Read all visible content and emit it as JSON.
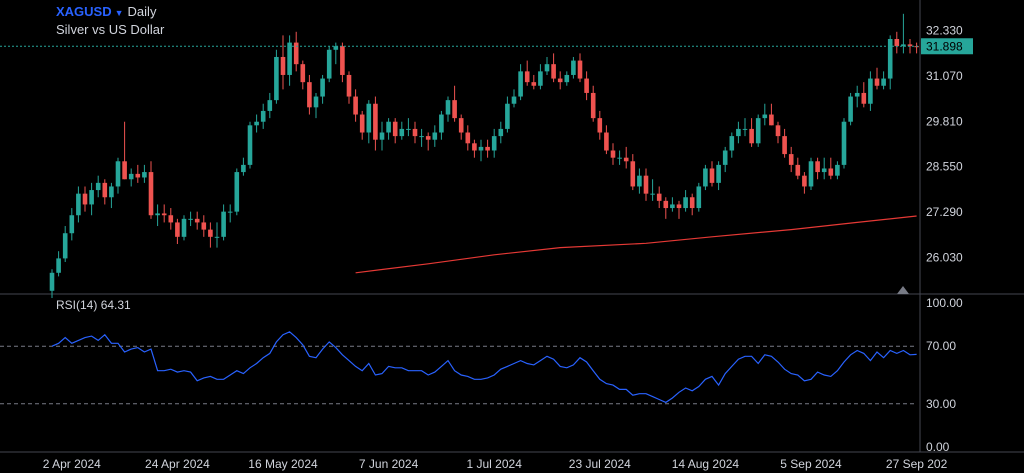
{
  "header": {
    "symbol": "XAGUSD",
    "interval": "Daily",
    "description": "Silver vs US Dollar"
  },
  "price_panel": {
    "last_price_label": "31.898",
    "y_tick_labels": [
      "32.330",
      "31.070",
      "29.810",
      "28.550",
      "27.290",
      "26.030"
    ]
  },
  "rsi_panel": {
    "label": "RSI(14)",
    "value": "64.31",
    "y_tick_labels": [
      "100.00",
      "70.00",
      "30.00",
      "0.00"
    ]
  },
  "x_axis": {
    "tick_labels": [
      "2 Apr 2024",
      "24 Apr 2024",
      "16 May 2024",
      "7 Jun 2024",
      "1 Jul 2024",
      "23 Jul 2024",
      "14 Aug 2024",
      "5 Sep 2024",
      "27 Sep 202"
    ]
  },
  "colors": {
    "up": "#26a69a",
    "down": "#ef5350",
    "moving_average": "#e53935",
    "rsi_line": "#2962ff",
    "last_price_badge": "#26a69a"
  },
  "chart_data": [
    {
      "type": "candlestick",
      "title": "XAGUSD Daily",
      "ylim": [
        25.5,
        33.0
      ],
      "x": [
        "2024-03-27",
        "2024-03-28",
        "2024-04-01",
        "2024-04-02",
        "2024-04-03",
        "2024-04-04",
        "2024-04-05",
        "2024-04-08",
        "2024-04-09",
        "2024-04-10",
        "2024-04-11",
        "2024-04-12",
        "2024-04-15",
        "2024-04-16",
        "2024-04-17",
        "2024-04-18",
        "2024-04-19",
        "2024-04-22",
        "2024-04-23",
        "2024-04-24",
        "2024-04-25",
        "2024-04-26",
        "2024-04-29",
        "2024-04-30",
        "2024-05-01",
        "2024-05-02",
        "2024-05-03",
        "2024-05-06",
        "2024-05-07",
        "2024-05-08",
        "2024-05-09",
        "2024-05-10",
        "2024-05-13",
        "2024-05-14",
        "2024-05-15",
        "2024-05-16",
        "2024-05-17",
        "2024-05-20",
        "2024-05-21",
        "2024-05-22",
        "2024-05-23",
        "2024-05-24",
        "2024-05-27",
        "2024-05-28",
        "2024-05-29",
        "2024-05-30",
        "2024-05-31",
        "2024-06-03",
        "2024-06-04",
        "2024-06-05",
        "2024-06-06",
        "2024-06-07",
        "2024-06-10",
        "2024-06-11",
        "2024-06-12",
        "2024-06-13",
        "2024-06-14",
        "2024-06-17",
        "2024-06-18",
        "2024-06-19",
        "2024-06-20",
        "2024-06-21",
        "2024-06-24",
        "2024-06-25",
        "2024-06-26",
        "2024-06-27",
        "2024-06-28",
        "2024-07-01",
        "2024-07-02",
        "2024-07-03",
        "2024-07-04",
        "2024-07-05",
        "2024-07-08",
        "2024-07-09",
        "2024-07-10",
        "2024-07-11",
        "2024-07-12",
        "2024-07-15",
        "2024-07-16",
        "2024-07-17",
        "2024-07-18",
        "2024-07-19",
        "2024-07-22",
        "2024-07-23",
        "2024-07-24",
        "2024-07-25",
        "2024-07-26",
        "2024-07-29",
        "2024-07-30",
        "2024-07-31",
        "2024-08-01",
        "2024-08-02",
        "2024-08-05",
        "2024-08-06",
        "2024-08-07",
        "2024-08-08",
        "2024-08-09",
        "2024-08-12",
        "2024-08-13",
        "2024-08-14",
        "2024-08-15",
        "2024-08-16",
        "2024-08-19",
        "2024-08-20",
        "2024-08-21",
        "2024-08-22",
        "2024-08-23",
        "2024-08-26",
        "2024-08-27",
        "2024-08-28",
        "2024-08-29",
        "2024-08-30",
        "2024-09-02",
        "2024-09-03",
        "2024-09-04",
        "2024-09-05",
        "2024-09-06",
        "2024-09-09",
        "2024-09-10",
        "2024-09-11",
        "2024-09-12",
        "2024-09-13",
        "2024-09-16",
        "2024-09-17",
        "2024-09-18",
        "2024-09-19",
        "2024-09-20",
        "2024-09-23",
        "2024-09-24",
        "2024-09-25",
        "2024-09-26",
        "2024-09-27"
      ],
      "open": [
        25.1,
        25.6,
        26.0,
        26.7,
        27.2,
        27.8,
        27.5,
        27.9,
        28.1,
        27.7,
        28.0,
        28.7,
        28.2,
        28.35,
        28.25,
        28.4,
        27.2,
        27.25,
        27.2,
        27.0,
        26.6,
        27.1,
        27.1,
        27.0,
        26.8,
        26.6,
        26.6,
        27.3,
        27.3,
        28.4,
        28.6,
        29.7,
        29.8,
        30.1,
        30.4,
        31.6,
        31.1,
        32.0,
        31.4,
        30.9,
        30.2,
        30.5,
        31.0,
        31.8,
        31.9,
        31.1,
        30.5,
        30.0,
        29.5,
        30.3,
        29.3,
        29.5,
        29.8,
        29.4,
        29.6,
        29.6,
        29.4,
        29.4,
        29.3,
        29.5,
        30.0,
        30.4,
        29.9,
        29.5,
        29.2,
        29.0,
        29.1,
        29.0,
        29.4,
        29.6,
        30.3,
        30.5,
        31.2,
        30.9,
        30.8,
        31.2,
        31.4,
        31.0,
        30.9,
        31.1,
        31.5,
        31.0,
        30.6,
        29.9,
        29.5,
        29.0,
        28.8,
        28.8,
        28.7,
        28.0,
        28.3,
        27.8,
        27.8,
        27.6,
        27.4,
        27.5,
        27.4,
        27.7,
        27.4,
        28.0,
        28.5,
        28.1,
        28.6,
        29.0,
        29.4,
        29.6,
        29.6,
        29.2,
        29.9,
        30.0,
        29.7,
        29.4,
        28.9,
        28.6,
        28.3,
        28.0,
        28.7,
        28.4,
        28.5,
        28.3,
        28.6,
        29.8,
        30.5,
        30.6,
        30.3,
        31.0,
        30.8,
        31.0,
        32.1,
        31.9,
        31.95,
        31.9
      ],
      "high": [
        25.7,
        26.2,
        26.9,
        27.4,
        28.0,
        28.0,
        28.1,
        28.3,
        28.2,
        28.1,
        28.8,
        29.8,
        28.5,
        28.6,
        28.6,
        28.7,
        27.5,
        27.5,
        27.4,
        27.1,
        27.2,
        27.3,
        27.3,
        27.2,
        27.0,
        27.0,
        27.5,
        27.5,
        28.5,
        28.8,
        29.8,
        30.0,
        30.3,
        30.6,
        31.8,
        32.2,
        32.2,
        32.3,
        31.5,
        31.1,
        30.6,
        31.1,
        31.9,
        32.0,
        32.0,
        31.2,
        30.7,
        30.1,
        30.4,
        30.5,
        29.8,
        29.9,
        29.9,
        29.8,
        29.9,
        29.8,
        29.6,
        29.5,
        29.7,
        30.1,
        30.5,
        30.8,
        30.0,
        29.7,
        29.3,
        29.3,
        29.3,
        29.6,
        29.8,
        30.5,
        30.7,
        31.4,
        31.5,
        31.1,
        31.4,
        31.6,
        31.7,
        31.2,
        31.2,
        31.6,
        31.7,
        31.2,
        30.8,
        30.1,
        29.7,
        29.2,
        29.0,
        29.1,
        28.9,
        28.5,
        28.5,
        28.2,
        28.0,
        27.7,
        27.7,
        27.6,
        27.9,
        27.8,
        28.1,
        28.6,
        28.7,
        28.7,
        29.1,
        29.5,
        29.8,
        29.9,
        29.9,
        30.0,
        30.3,
        30.3,
        29.8,
        29.6,
        29.1,
        28.8,
        28.4,
        28.8,
        28.8,
        28.8,
        28.8,
        28.7,
        29.9,
        30.6,
        30.8,
        30.9,
        31.2,
        31.3,
        31.2,
        32.2,
        32.3,
        32.8,
        32.1,
        32.0
      ],
      "low": [
        24.9,
        25.5,
        25.9,
        26.5,
        27.0,
        27.3,
        27.2,
        27.7,
        27.5,
        27.4,
        27.8,
        28.2,
        28.0,
        28.1,
        28.1,
        27.1,
        26.9,
        27.0,
        26.8,
        26.4,
        26.5,
        26.9,
        26.8,
        26.6,
        26.3,
        26.3,
        26.5,
        27.0,
        27.2,
        28.3,
        28.5,
        29.5,
        29.6,
        29.9,
        30.3,
        30.7,
        30.8,
        31.2,
        30.7,
        30.0,
        29.9,
        30.3,
        30.9,
        31.4,
        30.9,
        30.3,
        29.8,
        29.3,
        29.2,
        29.0,
        29.0,
        29.3,
        29.2,
        29.3,
        29.4,
        29.2,
        29.1,
        29.0,
        29.1,
        29.3,
        29.8,
        29.8,
        29.3,
        29.0,
        28.8,
        28.7,
        28.8,
        28.8,
        29.2,
        29.5,
        30.2,
        30.4,
        30.8,
        30.7,
        30.7,
        31.1,
        30.9,
        30.7,
        30.8,
        31.0,
        30.9,
        30.4,
        29.8,
        29.3,
        28.9,
        28.6,
        28.6,
        28.5,
        27.9,
        27.8,
        27.6,
        27.6,
        27.4,
        27.1,
        27.3,
        27.1,
        27.3,
        27.2,
        27.3,
        27.9,
        28.0,
        27.9,
        28.4,
        28.8,
        29.2,
        29.4,
        29.1,
        29.1,
        29.7,
        29.7,
        29.2,
        28.8,
        28.4,
        28.2,
        27.8,
        27.9,
        28.2,
        28.2,
        28.2,
        28.2,
        28.5,
        29.7,
        30.2,
        30.2,
        30.1,
        30.7,
        30.7,
        30.7,
        31.7,
        31.7,
        31.7,
        31.7
      ],
      "close": [
        25.6,
        26.0,
        26.7,
        27.2,
        27.8,
        27.5,
        27.9,
        28.1,
        27.7,
        28.0,
        28.7,
        28.2,
        28.35,
        28.25,
        28.4,
        27.2,
        27.25,
        27.2,
        27.0,
        26.6,
        27.1,
        27.1,
        27.0,
        26.8,
        26.6,
        26.6,
        27.3,
        27.3,
        28.4,
        28.6,
        29.7,
        29.8,
        30.1,
        30.4,
        31.6,
        31.1,
        32.0,
        31.4,
        30.9,
        30.2,
        30.5,
        31.0,
        31.8,
        31.9,
        31.1,
        30.5,
        30.0,
        29.5,
        30.3,
        29.3,
        29.5,
        29.8,
        29.4,
        29.6,
        29.6,
        29.4,
        29.4,
        29.3,
        29.5,
        30.0,
        30.4,
        29.9,
        29.5,
        29.2,
        29.0,
        29.1,
        29.0,
        29.4,
        29.6,
        30.3,
        30.5,
        31.2,
        30.9,
        30.8,
        31.2,
        31.4,
        31.0,
        30.9,
        31.1,
        31.5,
        31.0,
        30.6,
        29.9,
        29.5,
        29.0,
        28.8,
        28.8,
        28.7,
        28.0,
        28.3,
        27.8,
        27.8,
        27.6,
        27.4,
        27.5,
        27.4,
        27.7,
        27.4,
        28.0,
        28.5,
        28.1,
        28.6,
        29.0,
        29.4,
        29.6,
        29.6,
        29.2,
        29.9,
        30.0,
        29.7,
        29.4,
        28.9,
        28.6,
        28.3,
        28.0,
        28.7,
        28.4,
        28.5,
        28.3,
        28.6,
        29.8,
        30.5,
        30.6,
        30.3,
        31.0,
        30.8,
        31.0,
        32.1,
        31.9,
        31.95,
        31.9,
        31.898
      ],
      "series": [
        {
          "name": "",
          "x": [
            "2024-05-31",
            "2024-06-17",
            "2024-07-01",
            "2024-07-15",
            "2024-08-01",
            "2024-08-15",
            "2024-09-02",
            "2024-09-16",
            "2024-09-27"
          ],
          "values": [
            25.6,
            25.85,
            26.1,
            26.3,
            26.42,
            26.6,
            26.8,
            27.0,
            27.18
          ]
        }
      ],
      "last_price": 31.898
    },
    {
      "type": "line",
      "title": "RSI(14) 64.31",
      "ylim": [
        0,
        100
      ],
      "reference_lines": [
        70,
        30
      ],
      "x": [
        "2024-03-27",
        "2024-03-28",
        "2024-04-01",
        "2024-04-02",
        "2024-04-03",
        "2024-04-04",
        "2024-04-05",
        "2024-04-08",
        "2024-04-09",
        "2024-04-10",
        "2024-04-11",
        "2024-04-12",
        "2024-04-15",
        "2024-04-16",
        "2024-04-17",
        "2024-04-18",
        "2024-04-19",
        "2024-04-22",
        "2024-04-23",
        "2024-04-24",
        "2024-04-25",
        "2024-04-26",
        "2024-04-29",
        "2024-04-30",
        "2024-05-01",
        "2024-05-02",
        "2024-05-03",
        "2024-05-06",
        "2024-05-07",
        "2024-05-08",
        "2024-05-09",
        "2024-05-10",
        "2024-05-13",
        "2024-05-14",
        "2024-05-15",
        "2024-05-16",
        "2024-05-17",
        "2024-05-20",
        "2024-05-21",
        "2024-05-22",
        "2024-05-23",
        "2024-05-24",
        "2024-05-27",
        "2024-05-28",
        "2024-05-29",
        "2024-05-30",
        "2024-05-31",
        "2024-06-03",
        "2024-06-04",
        "2024-06-05",
        "2024-06-06",
        "2024-06-07",
        "2024-06-10",
        "2024-06-11",
        "2024-06-12",
        "2024-06-13",
        "2024-06-14",
        "2024-06-17",
        "2024-06-18",
        "2024-06-19",
        "2024-06-20",
        "2024-06-21",
        "2024-06-24",
        "2024-06-25",
        "2024-06-26",
        "2024-06-27",
        "2024-06-28",
        "2024-07-01",
        "2024-07-02",
        "2024-07-03",
        "2024-07-04",
        "2024-07-05",
        "2024-07-08",
        "2024-07-09",
        "2024-07-10",
        "2024-07-11",
        "2024-07-12",
        "2024-07-15",
        "2024-07-16",
        "2024-07-17",
        "2024-07-18",
        "2024-07-19",
        "2024-07-22",
        "2024-07-23",
        "2024-07-24",
        "2024-07-25",
        "2024-07-26",
        "2024-07-29",
        "2024-07-30",
        "2024-07-31",
        "2024-08-01",
        "2024-08-02",
        "2024-08-05",
        "2024-08-06",
        "2024-08-07",
        "2024-08-08",
        "2024-08-09",
        "2024-08-12",
        "2024-08-13",
        "2024-08-14",
        "2024-08-15",
        "2024-08-16",
        "2024-08-19",
        "2024-08-20",
        "2024-08-21",
        "2024-08-22",
        "2024-08-23",
        "2024-08-26",
        "2024-08-27",
        "2024-08-28",
        "2024-08-29",
        "2024-08-30",
        "2024-09-02",
        "2024-09-03",
        "2024-09-04",
        "2024-09-05",
        "2024-09-06",
        "2024-09-09",
        "2024-09-10",
        "2024-09-11",
        "2024-09-12",
        "2024-09-13",
        "2024-09-16",
        "2024-09-17",
        "2024-09-18",
        "2024-09-19",
        "2024-09-20",
        "2024-09-23",
        "2024-09-24",
        "2024-09-25",
        "2024-09-26",
        "2024-09-27"
      ],
      "values": [
        70,
        72,
        76,
        72,
        74,
        76,
        77,
        74,
        78,
        72,
        72,
        66,
        68,
        69,
        66,
        68,
        53,
        53,
        54,
        52,
        53,
        52,
        46,
        48,
        49,
        47,
        47,
        50,
        53,
        51,
        55,
        58,
        62,
        65,
        73,
        78,
        80,
        76,
        71,
        63,
        62,
        68,
        73,
        69,
        64,
        60,
        56,
        53,
        58,
        50,
        51,
        56,
        55,
        55,
        53,
        53,
        53,
        50,
        52,
        56,
        60,
        53,
        50,
        49,
        47,
        47,
        48,
        50,
        54,
        56,
        58,
        60,
        58,
        57,
        60,
        63,
        61,
        56,
        55,
        57,
        62,
        59,
        53,
        47,
        44,
        43,
        40,
        40,
        36,
        37,
        37,
        35,
        33,
        31,
        34,
        38,
        41,
        39,
        42,
        47,
        49,
        43,
        51,
        56,
        61,
        63,
        63,
        58,
        64,
        63,
        59,
        54,
        51,
        50,
        46,
        47,
        52,
        50,
        49,
        53,
        59,
        64,
        67,
        65,
        60,
        66,
        62,
        67,
        65,
        67,
        64,
        64.31
      ]
    }
  ]
}
